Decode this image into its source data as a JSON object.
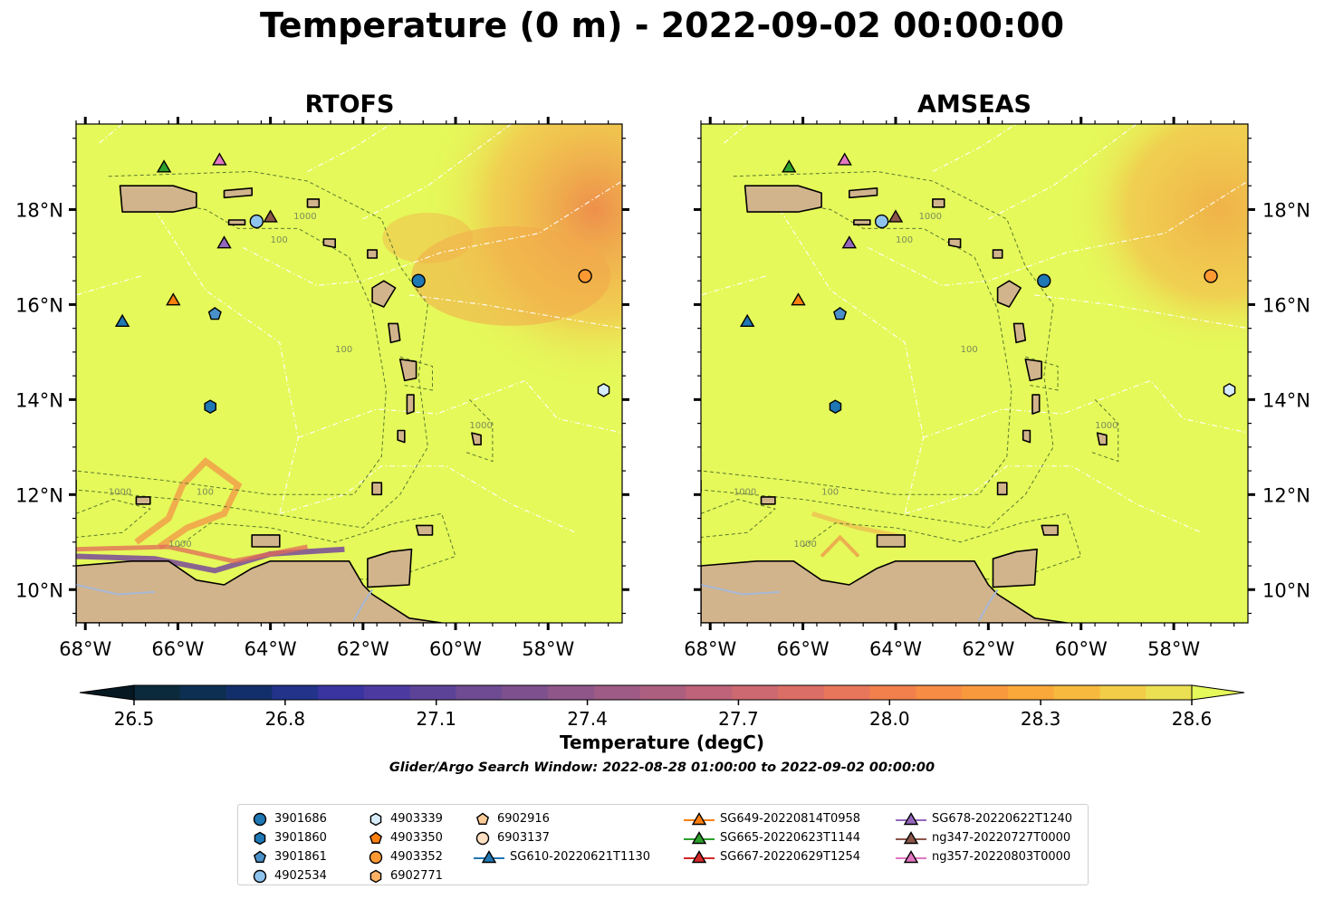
{
  "figure": {
    "title": "Temperature (0 m) - 2022-09-02 00:00:00"
  },
  "panels": [
    {
      "title": "RTOFS"
    },
    {
      "title": "AMSEAS"
    }
  ],
  "axes": {
    "lon_range": [
      -68.2,
      -56.4
    ],
    "lat_range": [
      9.3,
      19.8
    ],
    "lon_ticks": [
      "68°W",
      "66°W",
      "64°W",
      "62°W",
      "60°W",
      "58°W"
    ],
    "lat_ticks": [
      "18°N",
      "16°N",
      "14°N",
      "12°N",
      "10°N"
    ]
  },
  "map": {
    "land_color": "#d2b48c",
    "ocean_base_color": "#e5f95a",
    "contour_labels": [
      "1000",
      "100"
    ]
  },
  "colorbar": {
    "label": "Temperature (degC)",
    "min": 26.5,
    "max": 28.6,
    "ticks": [
      "26.5",
      "26.8",
      "27.1",
      "27.4",
      "27.7",
      "28.0",
      "28.3",
      "28.6"
    ],
    "colors": [
      "#0b2a3c",
      "#0d2f52",
      "#132f6b",
      "#223389",
      "#3a34a0",
      "#4d3aa1",
      "#5d4398",
      "#6e4b92",
      "#7e518e",
      "#8e5689",
      "#9e5b85",
      "#ad5f80",
      "#be637a",
      "#cd6971",
      "#db6e66",
      "#e8765a",
      "#f1804d",
      "#f78c44",
      "#f9993e",
      "#fba83b",
      "#f8ba3e",
      "#f2cd47",
      "#ebe052"
    ],
    "extend_low_color": "#061822",
    "extend_high_color": "#e5f95a"
  },
  "search_window": "Glider/Argo Search Window: 2022-08-28 01:00:00 to 2022-09-02 00:00:00",
  "legend": {
    "columns": [
      [
        {
          "label": "3901686",
          "marker": "circle",
          "color": "#1f77b4"
        },
        {
          "label": "3901860",
          "marker": "hexagon",
          "color": "#1f77b4"
        },
        {
          "label": "3901861",
          "marker": "pentagon",
          "color": "#4a90c8"
        },
        {
          "label": "4902534",
          "marker": "circle",
          "color": "#8ec3ee"
        }
      ],
      [
        {
          "label": "4903339",
          "marker": "hexagon",
          "color": "#d7ecfb"
        },
        {
          "label": "4903350",
          "marker": "pentagon",
          "color": "#ff7f0e"
        },
        {
          "label": "4903352",
          "marker": "circle",
          "color": "#ff9933"
        },
        {
          "label": "6902771",
          "marker": "hexagon",
          "color": "#ffb266"
        }
      ],
      [
        {
          "label": "6902916",
          "marker": "pentagon",
          "color": "#ffcc99"
        },
        {
          "label": "6903137",
          "marker": "circle",
          "color": "#ffe0c2"
        },
        {
          "label": "SG610-20220621T1130",
          "marker": "triangle-line",
          "color": "#1f77b4"
        }
      ],
      [
        {
          "label": "SG649-20220814T0958",
          "marker": "triangle-line",
          "color": "#ff7f0e"
        },
        {
          "label": "SG665-20220623T1144",
          "marker": "triangle-line",
          "color": "#2ca02c"
        },
        {
          "label": "SG667-20220629T1254",
          "marker": "triangle-line",
          "color": "#d62728"
        }
      ],
      [
        {
          "label": "SG678-20220622T1240",
          "marker": "triangle-line",
          "color": "#9467bd"
        },
        {
          "label": "ng347-20220727T0000",
          "marker": "triangle-line",
          "color": "#8c564b"
        },
        {
          "label": "ng357-20220803T0000",
          "marker": "triangle-line",
          "color": "#e377c2"
        }
      ]
    ]
  },
  "observations": [
    {
      "id": "3901686",
      "marker": "circle",
      "color": "#1f77b4",
      "lon": -60.8,
      "lat": 16.5
    },
    {
      "id": "3901860",
      "marker": "hexagon",
      "color": "#1f77b4",
      "lon": -65.3,
      "lat": 13.85
    },
    {
      "id": "3901861",
      "marker": "pentagon",
      "color": "#4a90c8",
      "lon": -65.2,
      "lat": 15.8
    },
    {
      "id": "4902534",
      "marker": "circle",
      "color": "#8ec3ee",
      "lon": -64.3,
      "lat": 17.75
    },
    {
      "id": "4903339",
      "marker": "hexagon",
      "color": "#d7ecfb",
      "lon": -56.8,
      "lat": 14.2
    },
    {
      "id": "4903352",
      "marker": "circle",
      "color": "#ff9933",
      "lon": -57.2,
      "lat": 16.6
    },
    {
      "id": "SG610-20220621T1130",
      "marker": "triangle",
      "color": "#1f77b4",
      "lon": -67.2,
      "lat": 15.65
    },
    {
      "id": "SG649-20220814T0958",
      "marker": "triangle",
      "color": "#ff7f0e",
      "lon": -66.1,
      "lat": 16.1
    },
    {
      "id": "SG665-20220623T1144",
      "marker": "triangle",
      "color": "#2ca02c",
      "lon": -66.3,
      "lat": 18.9
    },
    {
      "id": "SG678-20220622T1240",
      "marker": "triangle",
      "color": "#9467bd",
      "lon": -65.0,
      "lat": 17.3
    },
    {
      "id": "ng347-20220727T0000",
      "marker": "triangle",
      "color": "#8c564b",
      "lon": -64.0,
      "lat": 17.85
    },
    {
      "id": "ng357-20220803T0000",
      "marker": "triangle",
      "color": "#e377c2",
      "lon": -65.1,
      "lat": 19.05
    }
  ]
}
